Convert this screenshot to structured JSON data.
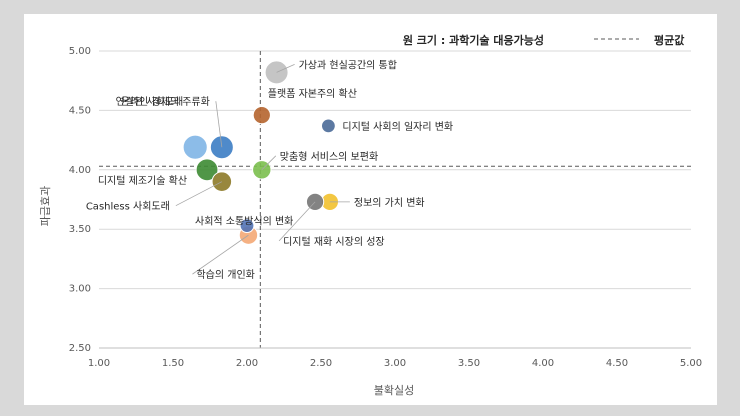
{
  "chart_data": {
    "type": "scatter",
    "xlabel": "불확실성",
    "ylabel": "파급효과",
    "xlim": [
      1.0,
      5.0
    ],
    "ylim": [
      2.5,
      5.0
    ],
    "x_ticks": [
      "1.00",
      "1.50",
      "2.00",
      "2.50",
      "3.00",
      "3.50",
      "4.00",
      "4.50",
      "5.00"
    ],
    "y_ticks": [
      "2.50",
      "3.00",
      "3.50",
      "4.00",
      "4.50",
      "5.00"
    ],
    "averages": {
      "x": 2.09,
      "y": 4.03
    },
    "legend": {
      "bubble_size": "원 크기 : 과학기술 대응가능성",
      "average_line": "평균값"
    },
    "points": [
      {
        "label": "가상과 현실공간의 통합",
        "x": 2.2,
        "y": 4.82,
        "size": 1.0,
        "color": "#bfbfbf"
      },
      {
        "label": "플랫폼 자본주의 확산",
        "x": 2.1,
        "y": 4.46,
        "size": 0.75,
        "color": "#b5642e"
      },
      {
        "label": "디지털 사회의 일자리 변화",
        "x": 2.55,
        "y": 4.37,
        "size": 0.6,
        "color": "#4a6a98"
      },
      {
        "label": "온라인 경제의 주류화",
        "x": 1.83,
        "y": 4.19,
        "size": 1.0,
        "color": "#3c7dc4"
      },
      {
        "label": "연결된 사회도래",
        "x": 1.65,
        "y": 4.19,
        "size": 1.05,
        "color": "#7fb5e6"
      },
      {
        "label": "맞춤형 서비스의 보편화",
        "x": 2.1,
        "y": 4.0,
        "size": 0.8,
        "color": "#7bbf4e"
      },
      {
        "label": "디지털 제조기술 확산",
        "x": 1.73,
        "y": 4.0,
        "size": 0.95,
        "color": "#3d8b33"
      },
      {
        "label": "Cashless 사회도래",
        "x": 1.83,
        "y": 3.9,
        "size": 0.85,
        "color": "#8d7a28"
      },
      {
        "label": "정보의 가치 변화",
        "x": 2.56,
        "y": 3.73,
        "size": 0.75,
        "color": "#f2c12e"
      },
      {
        "label": "디지털 재화 시장의 성장",
        "x": 2.46,
        "y": 3.73,
        "size": 0.75,
        "color": "#767676"
      },
      {
        "label": "사회적 소통방식의 변화",
        "x": 2.0,
        "y": 3.53,
        "size": 0.6,
        "color": "#5273b5"
      },
      {
        "label": "학습의 개인화",
        "x": 2.01,
        "y": 3.45,
        "size": 0.8,
        "color": "#f4a875"
      }
    ]
  }
}
